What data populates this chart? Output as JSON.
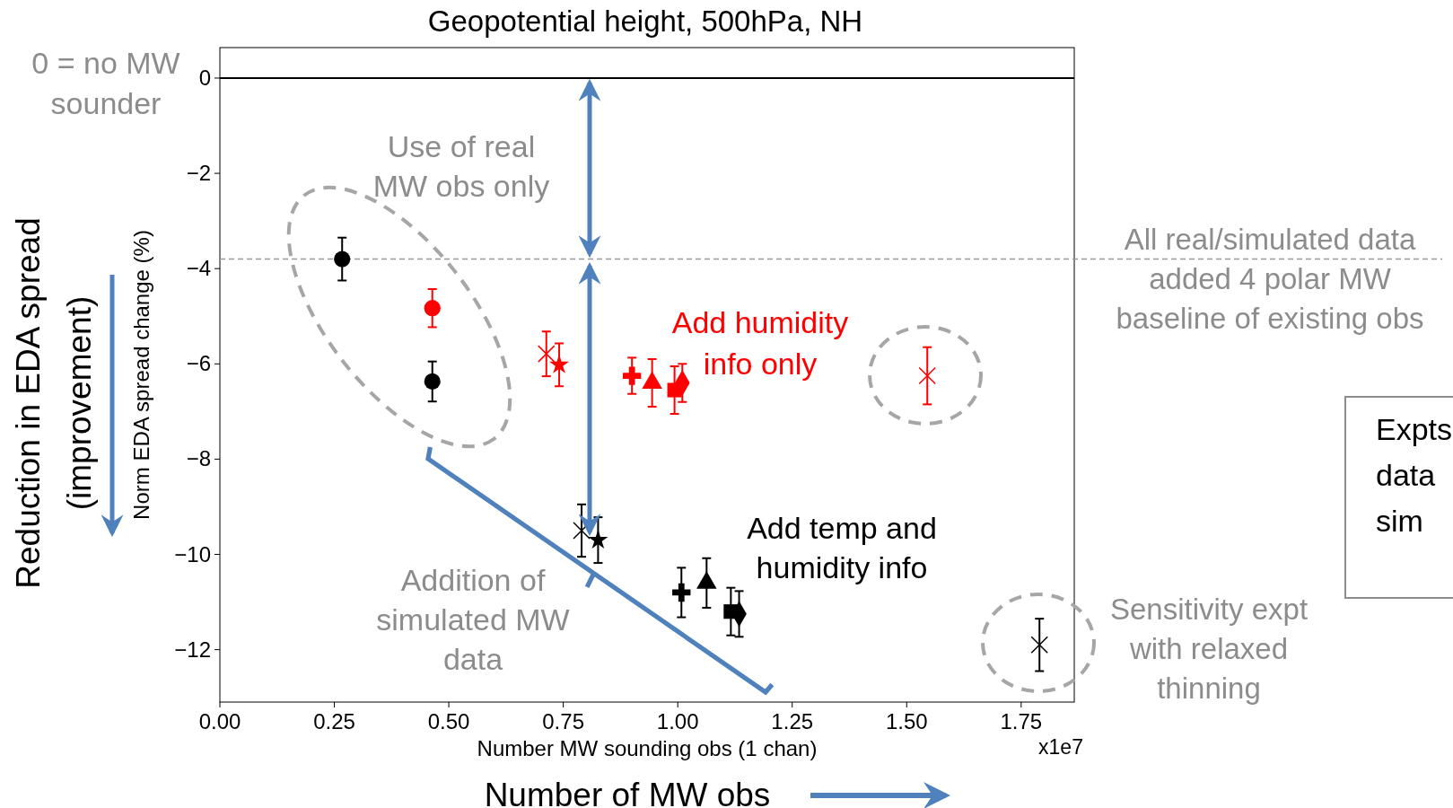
{
  "chart_data": {
    "type": "scatter",
    "title": "Geopotential height, 500hPa, NH",
    "xlabel": "Number MW sounding obs (1 chan)",
    "ylabel": "Norm EDA spread change (%)",
    "xlim": [
      0,
      1.866
    ],
    "ylim": [
      -13.1,
      0.64
    ],
    "xticks": [
      {
        "value": 0,
        "label": "0.00"
      },
      0.25,
      {
        "value": 0.5,
        "label": "0.50"
      },
      0.75,
      {
        "value": 1,
        "label": "1.00"
      },
      1.25,
      {
        "value": 1.5,
        "label": "1.50"
      },
      1.75
    ],
    "yticks": [
      0,
      {
        "value": -2,
        "label": "−2"
      },
      {
        "value": -4,
        "label": "−4"
      },
      {
        "value": -6,
        "label": "−6"
      },
      {
        "value": -8,
        "label": "−8"
      },
      {
        "value": -10,
        "label": "−10"
      },
      {
        "value": -12,
        "label": "−12"
      }
    ],
    "ref_lines": [
      {
        "axis": "y",
        "value": 0,
        "color": "#000000",
        "line_style": "solid"
      },
      {
        "axis": "y",
        "value": -3.8,
        "color": "#999999",
        "line_style": "dashed"
      }
    ],
    "series": [
      {
        "color": "#000000",
        "marker": "circle",
        "x": [
          0.267,
          0.464
        ],
        "values": [
          -3.8,
          -6.37
        ],
        "errors": [
          0.45,
          0.42
        ]
      },
      {
        "color": "#ff0000",
        "marker": "circle",
        "x": [
          0.464
        ],
        "values": [
          -4.83
        ],
        "errors": [
          0.4
        ]
      },
      {
        "color": "#ff0000",
        "marker": "cross",
        "x": [
          0.713
        ],
        "values": [
          -5.79
        ],
        "errors": [
          0.47
        ]
      },
      {
        "color": "#ff0000",
        "marker": "star",
        "x": [
          0.741
        ],
        "values": [
          -6.02
        ],
        "errors": [
          0.45
        ]
      },
      {
        "color": "#ff0000",
        "marker": "plus",
        "x": [
          0.9
        ],
        "values": [
          -6.25
        ],
        "errors": [
          0.38
        ]
      },
      {
        "color": "#ff0000",
        "marker": "triangle",
        "x": [
          0.944
        ],
        "values": [
          -6.4
        ],
        "errors": [
          0.5
        ]
      },
      {
        "color": "#ff0000",
        "marker": "square",
        "x": [
          0.993
        ],
        "values": [
          -6.55
        ],
        "errors": [
          0.5
        ]
      },
      {
        "color": "#ff0000",
        "marker": "diamond",
        "x": [
          1.01
        ],
        "values": [
          -6.4
        ],
        "errors": [
          0.4
        ]
      },
      {
        "color": "#ff0000",
        "marker": "cross",
        "x": [
          1.545
        ],
        "values": [
          -6.25
        ],
        "errors": [
          0.6
        ]
      },
      {
        "color": "#000000",
        "marker": "cross",
        "x": [
          0.79
        ],
        "values": [
          -9.5
        ],
        "errors": [
          0.55
        ]
      },
      {
        "color": "#000000",
        "marker": "star",
        "x": [
          0.826
        ],
        "values": [
          -9.7
        ],
        "errors": [
          0.48
        ]
      },
      {
        "color": "#000000",
        "marker": "plus",
        "x": [
          1.008
        ],
        "values": [
          -10.8
        ],
        "errors": [
          0.52
        ]
      },
      {
        "color": "#000000",
        "marker": "triangle",
        "x": [
          1.063
        ],
        "values": [
          -10.6
        ],
        "errors": [
          0.52
        ]
      },
      {
        "color": "#000000",
        "marker": "square",
        "x": [
          1.116
        ],
        "values": [
          -11.2
        ],
        "errors": [
          0.5
        ]
      },
      {
        "color": "#000000",
        "marker": "diamond",
        "x": [
          1.134
        ],
        "values": [
          -11.25
        ],
        "errors": [
          0.48
        ]
      },
      {
        "color": "#000000",
        "marker": "cross",
        "x": [
          1.79
        ],
        "values": [
          -11.9
        ],
        "errors": [
          0.55
        ]
      }
    ],
    "annotations": [
      "0 = no MW\nsounder",
      "Use of real\nMW obs only",
      "All real/simulated data\nadded 4 polar MW\nbaseline of existing obs",
      "Add humidity\ninfo only",
      "Add temp and\nhumidity info",
      "Addition of\nsimulated MW\ndata",
      "Sensitivity expt\nwith relaxed\nthinning",
      "x1e7",
      "Number of MW obs",
      "Reduction in EDA spread\n(improvement)",
      "Expts\ndata\nsim"
    ]
  }
}
